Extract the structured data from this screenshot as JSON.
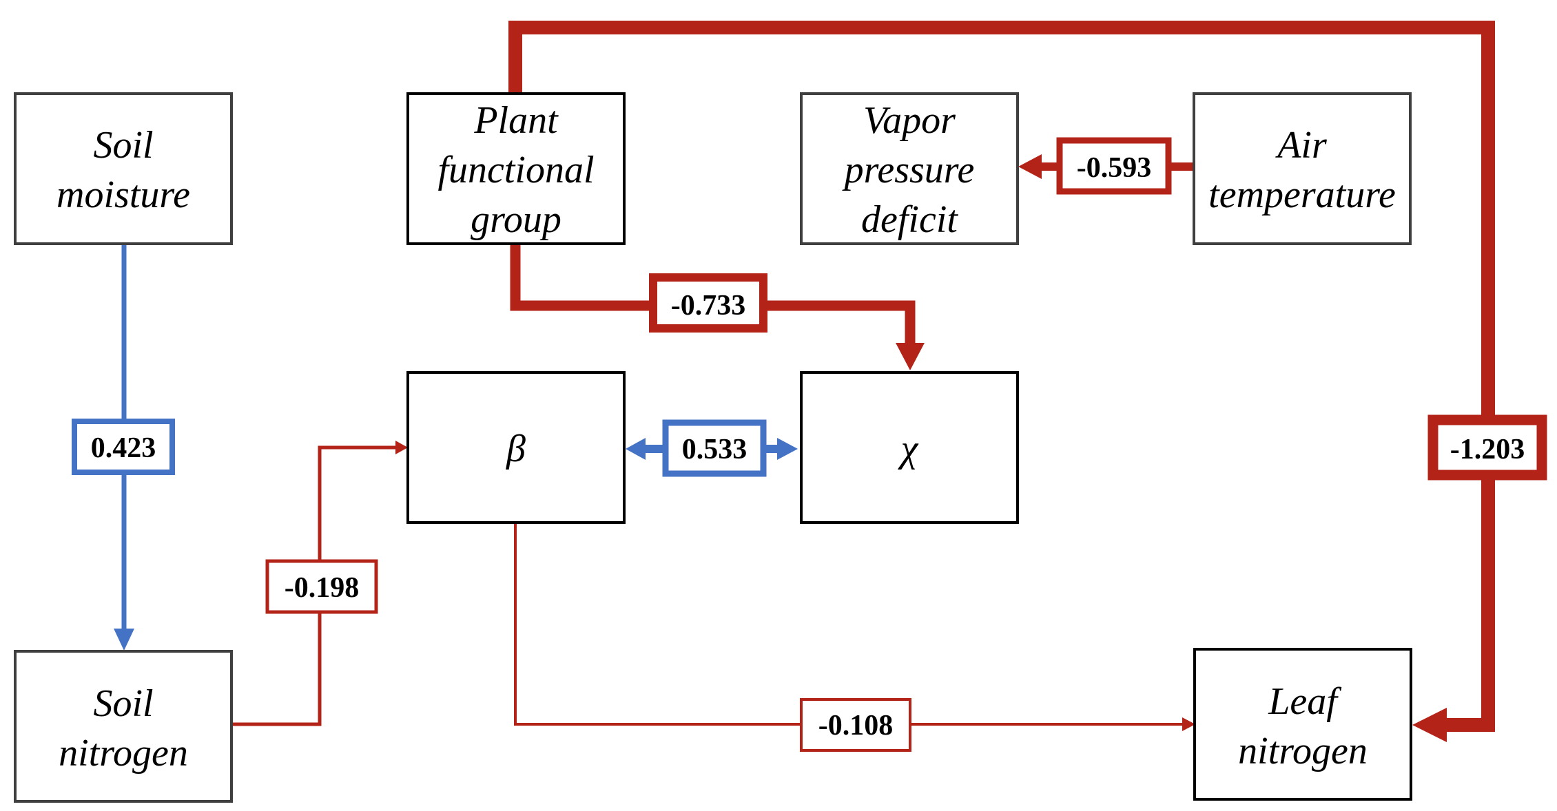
{
  "colors": {
    "negative": "#b42318",
    "positive": "#4472c4",
    "box_border_dark": "#000000",
    "box_border_gray": "#3f3f3f"
  },
  "nodes": {
    "soil_moisture": {
      "lines": [
        "Soil",
        "moisture"
      ]
    },
    "plant_functional_group": {
      "lines": [
        "Plant",
        "functional",
        "group"
      ]
    },
    "vapor_pressure_deficit": {
      "lines": [
        "Vapor",
        "pressure",
        "deficit"
      ]
    },
    "air_temperature": {
      "lines": [
        "Air",
        "temperature"
      ]
    },
    "beta": {
      "lines": [
        "β"
      ]
    },
    "chi": {
      "lines": [
        "χ"
      ]
    },
    "soil_nitrogen": {
      "lines": [
        "Soil",
        "nitrogen"
      ]
    },
    "leaf_nitrogen": {
      "lines": [
        "Leaf",
        "nitrogen"
      ]
    }
  },
  "paths": {
    "soil_moisture_to_soil_nitrogen": {
      "coefficient": "0.423",
      "sign": "positive"
    },
    "soil_nitrogen_to_beta": {
      "coefficient": "-0.198",
      "sign": "negative"
    },
    "plant_functional_group_to_chi": {
      "coefficient": "-0.733",
      "sign": "negative"
    },
    "air_temperature_to_vapor_pressure_deficit": {
      "coefficient": "-0.593",
      "sign": "negative"
    },
    "beta_chi_correlation": {
      "coefficient": "0.533",
      "sign": "positive"
    },
    "beta_to_leaf_nitrogen": {
      "coefficient": "-0.108",
      "sign": "negative"
    },
    "plant_functional_group_to_leaf_nitrogen": {
      "coefficient": "-1.203",
      "sign": "negative"
    }
  }
}
